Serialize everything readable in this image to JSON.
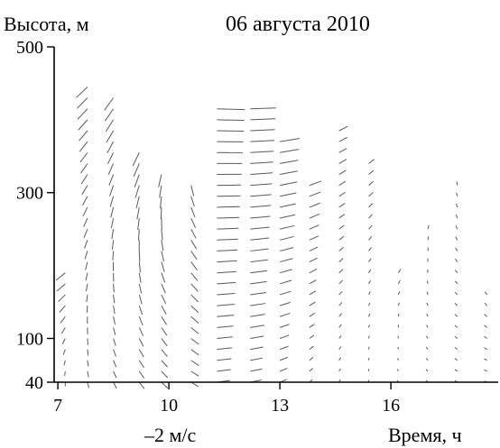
{
  "chart_data": {
    "type": "scatter",
    "title": "06 августа 2010",
    "ylabel": "Высота, м",
    "xlabel": "Время, ч",
    "scale_note": "–2 м/с",
    "x_ticks": [
      7,
      10,
      13,
      16
    ],
    "y_ticks": [
      40,
      100,
      300,
      500
    ],
    "xlim": [
      6.9,
      18.9
    ],
    "ylim": [
      40,
      500
    ],
    "grid": false,
    "series": [
      {
        "values": [
          {
            "t": 7.2,
            "z_bottom": 40,
            "z_top": 195,
            "dir_deg": 180,
            "speed": 2.2
          },
          {
            "t": 7.8,
            "z_bottom": 40,
            "z_top": 445,
            "dir_deg": 175,
            "speed": 3.0
          },
          {
            "t": 8.5,
            "z_bottom": 40,
            "z_top": 440,
            "dir_deg": 170,
            "speed": 3.4
          },
          {
            "t": 9.2,
            "z_bottom": 40,
            "z_top": 360,
            "dir_deg": 165,
            "speed": 3.6
          },
          {
            "t": 9.8,
            "z_bottom": 40,
            "z_top": 330,
            "dir_deg": 160,
            "speed": 3.4
          },
          {
            "t": 10.6,
            "z_bottom": 40,
            "z_top": 310,
            "dir_deg": 150,
            "speed": 2.8
          },
          {
            "t": 11.3,
            "z_bottom": 40,
            "z_top": 420,
            "dir_deg": 70,
            "speed": 2.6
          },
          {
            "t": 12.2,
            "z_bottom": 40,
            "z_top": 420,
            "dir_deg": 60,
            "speed": 2.4
          },
          {
            "t": 13.0,
            "z_bottom": 40,
            "z_top": 370,
            "dir_deg": 40,
            "speed": 2.0
          },
          {
            "t": 13.8,
            "z_bottom": 40,
            "z_top": 320,
            "dir_deg": 20,
            "speed": 1.6
          },
          {
            "t": 14.6,
            "z_bottom": 40,
            "z_top": 390,
            "dir_deg": 10,
            "speed": 1.4
          },
          {
            "t": 15.4,
            "z_bottom": 40,
            "z_top": 340,
            "dir_deg": 0,
            "speed": 1.2
          },
          {
            "t": 16.2,
            "z_bottom": 40,
            "z_top": 200,
            "dir_deg": 350,
            "speed": 1.0
          },
          {
            "t": 17.0,
            "z_bottom": 40,
            "z_top": 250,
            "dir_deg": 340,
            "speed": 1.0
          },
          {
            "t": 17.8,
            "z_bottom": 40,
            "z_top": 310,
            "dir_deg": 330,
            "speed": 1.0
          },
          {
            "t": 18.6,
            "z_bottom": 40,
            "z_top": 160,
            "dir_deg": 320,
            "speed": 0.8
          }
        ]
      }
    ]
  }
}
